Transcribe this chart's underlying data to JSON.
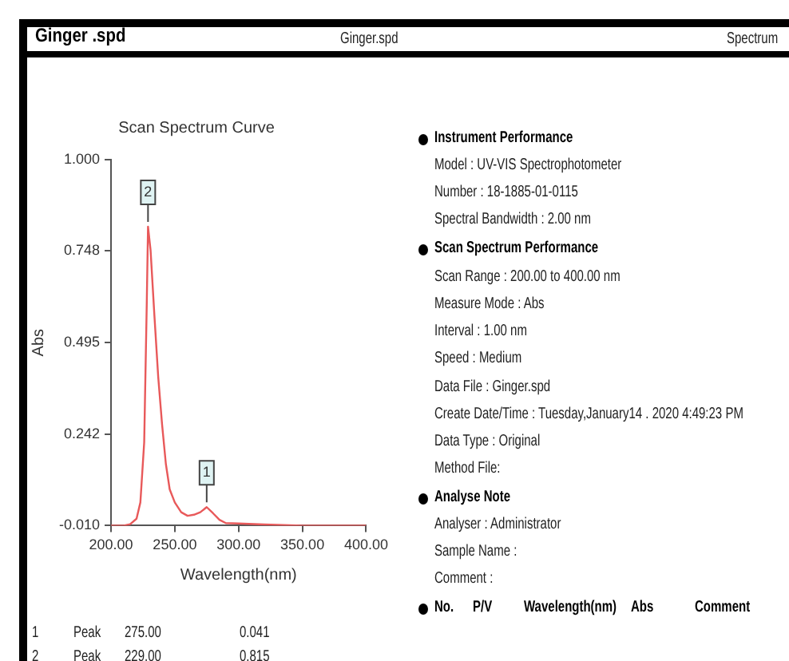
{
  "chart_data": {
    "type": "line",
    "title": "Scan Spectrum Curve",
    "xlabel": "Wavelength(nm)",
    "ylabel": "Abs",
    "x": [
      200,
      210,
      215,
      220,
      223,
      226,
      228,
      229,
      231,
      234,
      237,
      240,
      243,
      246,
      250,
      255,
      260,
      265,
      270,
      275,
      280,
      285,
      290,
      300,
      320,
      350,
      400
    ],
    "series": [
      {
        "color": "#e8595a",
        "values": [
          -0.01,
          -0.01,
          -0.006,
          0.009,
          0.054,
          0.22,
          0.6,
          0.815,
          0.75,
          0.57,
          0.4,
          0.27,
          0.16,
          0.09,
          0.054,
          0.027,
          0.017,
          0.02,
          0.027,
          0.041,
          0.024,
          0.006,
          -0.003,
          -0.004,
          -0.007,
          -0.01,
          -0.01
        ]
      }
    ],
    "xlim": [
      200,
      400
    ],
    "ylim": [
      -0.01,
      1
    ],
    "xticks": [
      {
        "value": 200,
        "label": "200.00"
      },
      {
        "value": 250,
        "label": "250.00"
      },
      {
        "value": 300,
        "label": "300.00"
      },
      {
        "value": 350,
        "label": "350.00"
      },
      {
        "value": 400,
        "label": "400.00"
      }
    ],
    "yticks": [
      {
        "value": -0.01,
        "label": "-0.010"
      },
      {
        "value": 0.242,
        "label": "0.242"
      },
      {
        "value": 0.495,
        "label": "0.495"
      },
      {
        "value": 0.748,
        "label": "0.748"
      },
      {
        "value": 1,
        "label": "1.000"
      }
    ],
    "grid": false,
    "legend": false,
    "marker": "none",
    "line_style": "solid",
    "annotations": [
      "Ginger .spd",
      "Ginger.spd",
      "Spectrum",
      "Instrument Performance",
      "Model : UV-VIS Spectrophotometer",
      "Number : 18-1885-01-0115",
      "Spectral Bandwidth : 2.00 nm",
      "Scan Spectrum Performance",
      "Scan Range : 200.00 to 400.00 nm",
      "Measure Mode : Abs",
      "Interval : 1.00 nm",
      "Speed : Medium",
      "Data File : Ginger.spd",
      "Create Date/Time : Tuesday,January14 . 2020 4:49:23 PM",
      "Data Type : Original",
      "Method File:",
      "Analyse Note",
      "Analyser : Administrator",
      "Sample Name :",
      "Comment :",
      "No.",
      "P/V",
      "Wavelength(nm)",
      "Abs",
      "Comment",
      "1",
      "Peak",
      "275.00",
      "0.041",
      "2",
      "Peak",
      "229.00",
      "0.815",
      {
        "text": "1",
        "x": 275,
        "y": 0.041
      },
      {
        "text": "2",
        "x": 229,
        "y": 0.815
      }
    ]
  }
}
